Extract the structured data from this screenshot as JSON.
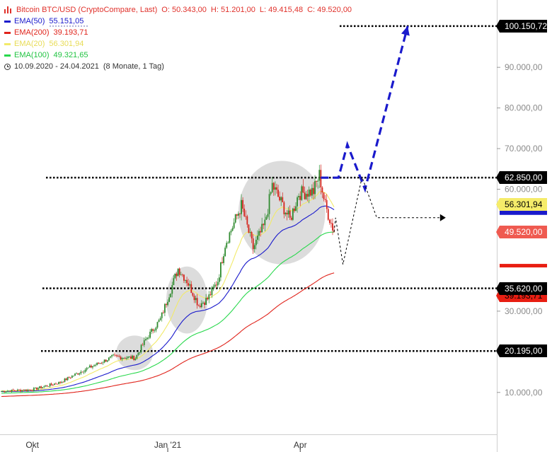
{
  "legend": {
    "title": "Bitcoin BTC/USD (CryptoCompare, Last)",
    "open": "O: 50.343,00",
    "high": "H: 51.201,00",
    "low": "L: 49.415,48",
    "close": "C: 49.520,00",
    "ema50": {
      "label": "EMA(50)",
      "value": "55.151,05",
      "color": "#1a1acc"
    },
    "ema200": {
      "label": "EMA(200)",
      "value": "39.193,71",
      "color": "#e0231b"
    },
    "ema20": {
      "label": "EMA(20)",
      "value": "56.301,94",
      "color": "#f2ea6a"
    },
    "ema100": {
      "label": "EMA(100)",
      "value": "49.321,65",
      "color": "#28d84c"
    },
    "period": "10.09.2020 - 24.04.2021",
    "period_note": "(8 Monate, 1 Tag)"
  },
  "colors": {
    "up": "#2f8a2f",
    "down": "#d4241c",
    "forecast_blue": "#1a1acc",
    "level_line": "#000000",
    "grid_axis": "#cfcfcf",
    "highlight_circle": "#d8d8d8"
  },
  "tags": [
    {
      "value": "100.150,72",
      "bg": "#000000",
      "fg": "#ffffff"
    },
    {
      "value": "62.850,00",
      "bg": "#000000",
      "fg": "#ffffff"
    },
    {
      "value": "56.301,94",
      "bg": "#f5ec6a",
      "fg": "#000000"
    },
    {
      "value": "49.520,00",
      "bg": "#ef5a50",
      "fg": "#ffffff"
    },
    {
      "value": "39.193,71",
      "bg": "#e81e12",
      "fg": "#000000"
    },
    {
      "value": "35.620,00",
      "bg": "#000000",
      "fg": "#ffffff"
    },
    {
      "value": "20.195,00",
      "bg": "#000000",
      "fg": "#ffffff"
    }
  ],
  "chart_data": {
    "type": "candlestick",
    "x_range": [
      "2020-09-10",
      "2021-04-24"
    ],
    "y_ticks": [
      "10.000,00",
      "30.000,00",
      "60.000,00",
      "70.000,00",
      "80.000,00",
      "90.000,00"
    ],
    "y_tick_values": [
      10000,
      30000,
      60000,
      70000,
      80000,
      90000
    ],
    "y_range": [
      3000,
      103000
    ],
    "x_ticks": [
      {
        "label": "Okt",
        "date": "2020-10-01"
      },
      {
        "label": "Jan '21",
        "date": "2021-01-01"
      },
      {
        "label": "Apr",
        "date": "2021-04-01"
      }
    ],
    "horizontal_levels": [
      100150.72,
      62850,
      35620,
      20195
    ],
    "emas": {
      "ema20": 56301.94,
      "ema50": 55151.05,
      "ema100": 49321.65,
      "ema200": 39193.71
    },
    "last_close": 49520,
    "anchors": [
      [
        "2020-09-10",
        10300
      ],
      [
        "2020-10-01",
        10700
      ],
      [
        "2020-10-20",
        12500
      ],
      [
        "2020-11-05",
        15500
      ],
      [
        "2020-11-25",
        18800
      ],
      [
        "2020-12-10",
        18500
      ],
      [
        "2020-12-17",
        23000
      ],
      [
        "2020-12-27",
        28000
      ],
      [
        "2021-01-08",
        40500
      ],
      [
        "2021-01-14",
        37500
      ],
      [
        "2021-01-22",
        31500
      ],
      [
        "2021-01-28",
        33000
      ],
      [
        "2021-02-04",
        37500
      ],
      [
        "2021-02-09",
        46500
      ],
      [
        "2021-02-20",
        56000
      ],
      [
        "2021-02-28",
        45500
      ],
      [
        "2021-03-08",
        51500
      ],
      [
        "2021-03-13",
        61000
      ],
      [
        "2021-03-25",
        52500
      ],
      [
        "2021-03-31",
        59000
      ],
      [
        "2021-04-10",
        59500
      ],
      [
        "2021-04-14",
        63500
      ],
      [
        "2021-04-18",
        56000
      ],
      [
        "2021-04-24",
        49520
      ]
    ],
    "forecast_bull": [
      [
        "2021-04-15",
        62850
      ],
      [
        "2021-04-27",
        62850
      ],
      [
        "2021-05-03",
        71000
      ],
      [
        "2021-05-15",
        60000
      ],
      [
        "2021-06-13",
        100150.72
      ]
    ],
    "forecast_alt": [
      [
        "2021-04-25",
        53000
      ],
      [
        "2021-04-30",
        41500
      ],
      [
        "2021-05-13",
        63000
      ],
      [
        "2021-05-23",
        53000
      ],
      [
        "2021-07-05",
        53000
      ]
    ],
    "highlight_zones": [
      {
        "from": "2020-11-27",
        "to": "2020-12-22",
        "low": 15500,
        "high": 24000
      },
      {
        "from": "2020-12-31",
        "to": "2021-01-28",
        "low": 24500,
        "high": 41000
      },
      {
        "from": "2021-02-18",
        "to": "2021-04-18",
        "low": 41500,
        "high": 67000
      }
    ]
  }
}
